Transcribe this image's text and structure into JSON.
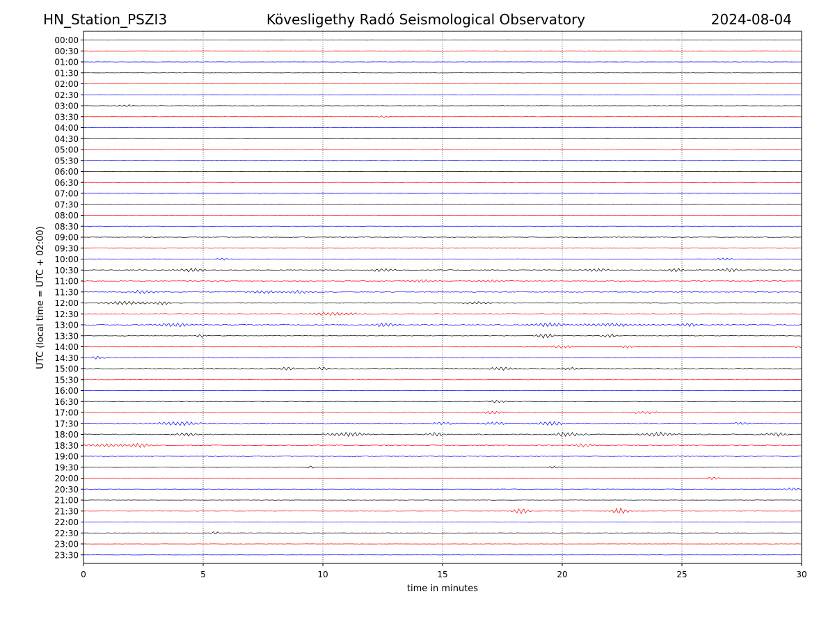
{
  "header": {
    "station": "HN_Station_PSZI3",
    "observatory": "Kövesligethy Radó Seismological Observatory",
    "date": "2024-08-04"
  },
  "chart_data": {
    "type": "line",
    "description_kind": "helicorder",
    "xlabel": "time in minutes",
    "ylabel": "UTC (local time = UTC + 02:00)",
    "xlim": [
      0,
      30
    ],
    "x_ticks": [
      0,
      5,
      10,
      15,
      20,
      25,
      30
    ],
    "x_tick_labels": [
      "0",
      "5",
      "10",
      "15",
      "20",
      "25",
      "30"
    ],
    "grid": "vertical dotted at each x tick",
    "trace_colors": [
      "#000000",
      "#ff0000",
      "#0000ff"
    ],
    "rows": [
      {
        "label": "00:00",
        "amplitude": 0.4,
        "events": []
      },
      {
        "label": "00:30",
        "amplitude": 0.3,
        "events": []
      },
      {
        "label": "01:00",
        "amplitude": 0.3,
        "events": []
      },
      {
        "label": "01:30",
        "amplitude": 0.3,
        "events": []
      },
      {
        "label": "02:00",
        "amplitude": 0.3,
        "events": []
      },
      {
        "label": "02:30",
        "amplitude": 0.3,
        "events": []
      },
      {
        "label": "03:00",
        "amplitude": 0.4,
        "events": [
          [
            1.8,
            0.3,
            1.5
          ]
        ]
      },
      {
        "label": "03:30",
        "amplitude": 0.3,
        "events": [
          [
            12.5,
            0.3,
            1.2
          ]
        ]
      },
      {
        "label": "04:00",
        "amplitude": 0.3,
        "events": []
      },
      {
        "label": "04:30",
        "amplitude": 0.3,
        "events": []
      },
      {
        "label": "05:00",
        "amplitude": 0.4,
        "events": []
      },
      {
        "label": "05:30",
        "amplitude": 0.3,
        "events": []
      },
      {
        "label": "06:00",
        "amplitude": 0.3,
        "events": []
      },
      {
        "label": "06:30",
        "amplitude": 0.3,
        "events": []
      },
      {
        "label": "07:00",
        "amplitude": 0.3,
        "events": []
      },
      {
        "label": "07:30",
        "amplitude": 0.3,
        "events": []
      },
      {
        "label": "08:00",
        "amplitude": 0.3,
        "events": []
      },
      {
        "label": "08:30",
        "amplitude": 0.3,
        "events": []
      },
      {
        "label": "09:00",
        "amplitude": 0.6,
        "events": []
      },
      {
        "label": "09:30",
        "amplitude": 0.4,
        "events": []
      },
      {
        "label": "10:00",
        "amplitude": 0.6,
        "events": [
          [
            5.8,
            0.2,
            2.0
          ],
          [
            26.8,
            0.3,
            2.0
          ]
        ]
      },
      {
        "label": "10:30",
        "amplitude": 0.9,
        "events": [
          [
            4.5,
            0.6,
            2.5
          ],
          [
            12.5,
            0.6,
            2.0
          ],
          [
            21.5,
            0.5,
            2.0
          ],
          [
            24.7,
            0.4,
            2.5
          ],
          [
            27.0,
            0.4,
            3.0
          ]
        ]
      },
      {
        "label": "11:00",
        "amplitude": 0.8,
        "events": [
          [
            14.0,
            0.6,
            2.0
          ],
          [
            17.0,
            0.5,
            1.8
          ]
        ]
      },
      {
        "label": "11:30",
        "amplitude": 0.9,
        "events": [
          [
            2.5,
            0.5,
            2.5
          ],
          [
            7.5,
            0.7,
            2.0
          ],
          [
            9.0,
            0.5,
            2.0
          ]
        ]
      },
      {
        "label": "12:00",
        "amplitude": 0.9,
        "events": [
          [
            1.8,
            1.0,
            2.5
          ],
          [
            3.3,
            0.4,
            2.5
          ],
          [
            16.5,
            0.6,
            2.0
          ]
        ]
      },
      {
        "label": "12:30",
        "amplitude": 0.9,
        "events": [
          [
            10.5,
            1.2,
            2.0
          ]
        ]
      },
      {
        "label": "13:00",
        "amplitude": 1.0,
        "events": [
          [
            3.8,
            0.8,
            2.5
          ],
          [
            12.6,
            0.5,
            3.0
          ],
          [
            19.5,
            0.8,
            3.0
          ],
          [
            22.0,
            1.2,
            2.5
          ],
          [
            25.3,
            0.4,
            2.5
          ]
        ]
      },
      {
        "label": "13:30",
        "amplitude": 0.6,
        "events": [
          [
            4.9,
            0.2,
            2.5
          ],
          [
            19.3,
            0.4,
            3.5
          ],
          [
            22.0,
            0.3,
            2.5
          ]
        ]
      },
      {
        "label": "14:00",
        "amplitude": 0.7,
        "events": [
          [
            20.0,
            0.5,
            2.0
          ],
          [
            22.7,
            0.3,
            2.0
          ],
          [
            29.8,
            0.2,
            2.0
          ]
        ]
      },
      {
        "label": "14:30",
        "amplitude": 0.8,
        "events": [
          [
            0.6,
            0.3,
            2.0
          ]
        ]
      },
      {
        "label": "15:00",
        "amplitude": 0.8,
        "events": [
          [
            8.5,
            0.4,
            2.0
          ],
          [
            10.0,
            0.2,
            2.5
          ],
          [
            17.5,
            0.6,
            2.0
          ],
          [
            20.3,
            0.4,
            2.0
          ]
        ]
      },
      {
        "label": "15:30",
        "amplitude": 0.4,
        "events": []
      },
      {
        "label": "16:00",
        "amplitude": 0.4,
        "events": []
      },
      {
        "label": "16:30",
        "amplitude": 0.6,
        "events": [
          [
            17.3,
            0.3,
            2.0
          ]
        ]
      },
      {
        "label": "17:00",
        "amplitude": 0.8,
        "events": [
          [
            17.0,
            0.6,
            2.0
          ],
          [
            23.5,
            0.8,
            1.5
          ]
        ]
      },
      {
        "label": "17:30",
        "amplitude": 1.0,
        "events": [
          [
            4.0,
            0.8,
            3.0
          ],
          [
            15.0,
            0.5,
            2.0
          ],
          [
            17.2,
            0.5,
            2.0
          ],
          [
            19.5,
            0.6,
            3.0
          ],
          [
            27.5,
            0.4,
            2.0
          ]
        ]
      },
      {
        "label": "18:00",
        "amplitude": 1.0,
        "events": [
          [
            4.3,
            0.5,
            2.5
          ],
          [
            11.0,
            0.8,
            3.0
          ],
          [
            14.7,
            0.4,
            2.5
          ],
          [
            20.2,
            0.6,
            3.0
          ],
          [
            24.0,
            0.6,
            3.0
          ],
          [
            29.0,
            0.5,
            2.5
          ]
        ]
      },
      {
        "label": "18:30",
        "amplitude": 1.0,
        "events": [
          [
            1.0,
            0.9,
            2.5
          ],
          [
            2.4,
            0.4,
            3.0
          ],
          [
            20.9,
            0.4,
            2.5
          ]
        ]
      },
      {
        "label": "19:00",
        "amplitude": 0.6,
        "events": []
      },
      {
        "label": "19:30",
        "amplitude": 0.5,
        "events": [
          [
            9.5,
            0.1,
            3.0
          ],
          [
            19.6,
            0.2,
            2.0
          ]
        ]
      },
      {
        "label": "20:00",
        "amplitude": 0.5,
        "events": [
          [
            26.3,
            0.3,
            2.0
          ]
        ]
      },
      {
        "label": "20:30",
        "amplitude": 0.5,
        "events": [
          [
            29.6,
            0.3,
            2.0
          ]
        ]
      },
      {
        "label": "21:00",
        "amplitude": 0.4,
        "events": []
      },
      {
        "label": "21:30",
        "amplitude": 0.4,
        "events": [
          [
            18.3,
            0.35,
            4.0
          ],
          [
            22.4,
            0.35,
            4.5
          ]
        ]
      },
      {
        "label": "22:00",
        "amplitude": 0.4,
        "events": []
      },
      {
        "label": "22:30",
        "amplitude": 0.4,
        "events": [
          [
            5.5,
            0.2,
            2.0
          ]
        ]
      },
      {
        "label": "23:00",
        "amplitude": 0.3,
        "events": []
      },
      {
        "label": "23:30",
        "amplitude": 0.3,
        "events": []
      }
    ]
  }
}
